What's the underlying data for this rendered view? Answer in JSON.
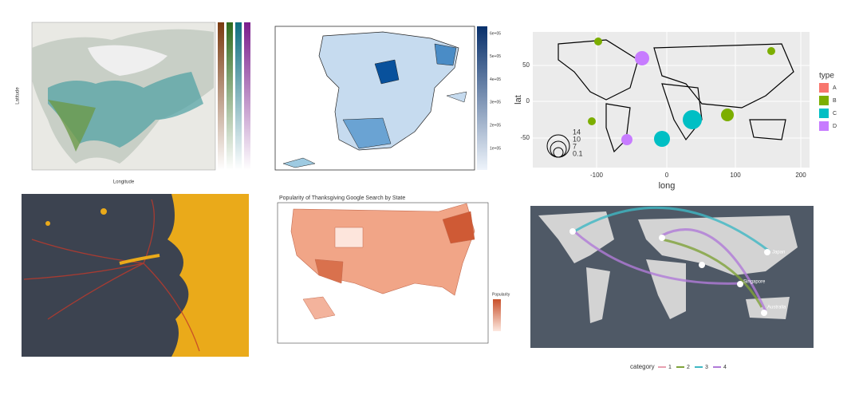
{
  "vegetation_map": {
    "x_label": "Longitude",
    "y_label": "Latitude"
  },
  "spain_map": {
    "legend_ticks": [
      "6e+05",
      "5e+05",
      "4e+05",
      "3e+05",
      "2e+05",
      "1e+05"
    ]
  },
  "pie_map": {
    "x_label": "long",
    "y_label": "lat",
    "x_ticks": [
      "-100",
      "0",
      "100",
      "200"
    ],
    "y_ticks": [
      "50",
      "0",
      "-50"
    ],
    "legend_title": "type",
    "legend_items": [
      "A",
      "B",
      "C",
      "D"
    ],
    "legend_colors": [
      "#f8766d",
      "#7cae00",
      "#00bfc4",
      "#c77cff"
    ],
    "size_ticks": [
      "14",
      "10",
      "7",
      "0.1"
    ]
  },
  "thanksgiving_map": {
    "title": "Popularity of Thanksgiving Google Search by State",
    "legend_title": "Popularity"
  },
  "network_map": {
    "legend_title": "category",
    "legend_items": [
      "1",
      "2",
      "3",
      "4"
    ],
    "legend_colors": [
      "#e8a0b0",
      "#7fa33a",
      "#3fb8c4",
      "#b07ad8"
    ],
    "city_labels": [
      "Japan",
      "Singapore",
      "Australia"
    ]
  }
}
